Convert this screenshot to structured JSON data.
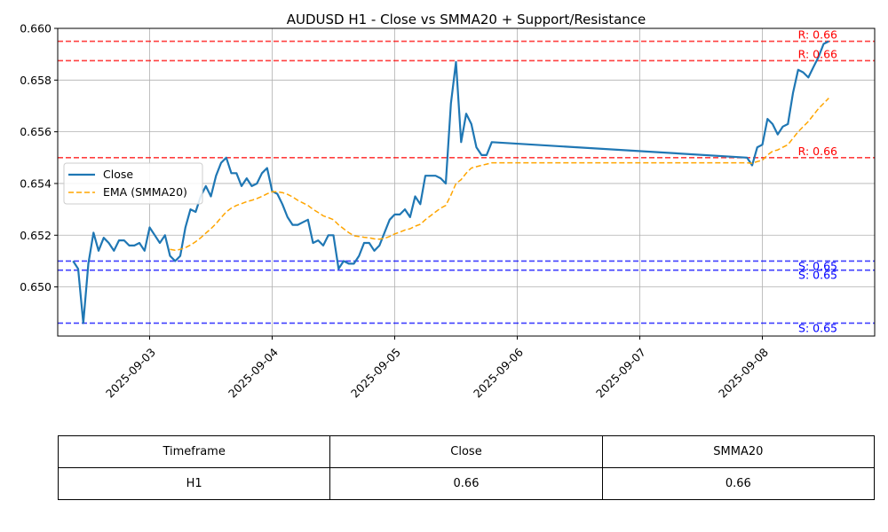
{
  "chart_data": {
    "type": "line",
    "title": "AUDUSD H1 - Close vs SMMA20 + Support/Resistance",
    "xlabel": "",
    "ylabel": "",
    "x_ticks": [
      "2025-09-03",
      "2025-09-04",
      "2025-09-05",
      "2025-09-06",
      "2025-09-07",
      "2025-09-08"
    ],
    "y_ticks": [
      "0.650",
      "0.652",
      "0.654",
      "0.656",
      "0.658",
      "0.660"
    ],
    "xlim": [
      "2025-09-02 06:00",
      "2025-09-08 22:00"
    ],
    "ylim": [
      0.6481,
      0.66
    ],
    "grid": true,
    "legend_position": "center-left",
    "series": [
      {
        "name": "Close",
        "color": "#1f77b4",
        "style": "solid",
        "points": [
          [
            "2025-09-02 09:00",
            0.651
          ],
          [
            "2025-09-02 10:00",
            0.6507
          ],
          [
            "2025-09-02 11:00",
            0.6486
          ],
          [
            "2025-09-02 12:00",
            0.6509
          ],
          [
            "2025-09-02 13:00",
            0.6521
          ],
          [
            "2025-09-02 14:00",
            0.6514
          ],
          [
            "2025-09-02 15:00",
            0.6519
          ],
          [
            "2025-09-02 16:00",
            0.6517
          ],
          [
            "2025-09-02 17:00",
            0.6514
          ],
          [
            "2025-09-02 18:00",
            0.6518
          ],
          [
            "2025-09-02 19:00",
            0.6518
          ],
          [
            "2025-09-02 20:00",
            0.6516
          ],
          [
            "2025-09-02 21:00",
            0.6516
          ],
          [
            "2025-09-02 22:00",
            0.6517
          ],
          [
            "2025-09-02 23:00",
            0.6514
          ],
          [
            "2025-09-03 00:00",
            0.6523
          ],
          [
            "2025-09-03 01:00",
            0.652
          ],
          [
            "2025-09-03 02:00",
            0.6517
          ],
          [
            "2025-09-03 03:00",
            0.652
          ],
          [
            "2025-09-03 04:00",
            0.6512
          ],
          [
            "2025-09-03 05:00",
            0.651
          ],
          [
            "2025-09-03 06:00",
            0.6512
          ],
          [
            "2025-09-03 07:00",
            0.6523
          ],
          [
            "2025-09-03 08:00",
            0.653
          ],
          [
            "2025-09-03 09:00",
            0.6529
          ],
          [
            "2025-09-03 10:00",
            0.6535
          ],
          [
            "2025-09-03 11:00",
            0.6539
          ],
          [
            "2025-09-03 12:00",
            0.6535
          ],
          [
            "2025-09-03 13:00",
            0.6543
          ],
          [
            "2025-09-03 14:00",
            0.6548
          ],
          [
            "2025-09-03 15:00",
            0.655
          ],
          [
            "2025-09-03 16:00",
            0.6544
          ],
          [
            "2025-09-03 17:00",
            0.6544
          ],
          [
            "2025-09-03 18:00",
            0.6539
          ],
          [
            "2025-09-03 19:00",
            0.6542
          ],
          [
            "2025-09-03 20:00",
            0.6539
          ],
          [
            "2025-09-03 21:00",
            0.654
          ],
          [
            "2025-09-03 22:00",
            0.6544
          ],
          [
            "2025-09-03 23:00",
            0.6546
          ],
          [
            "2025-09-04 00:00",
            0.6537
          ],
          [
            "2025-09-04 01:00",
            0.6536
          ],
          [
            "2025-09-04 02:00",
            0.6532
          ],
          [
            "2025-09-04 03:00",
            0.6527
          ],
          [
            "2025-09-04 04:00",
            0.6524
          ],
          [
            "2025-09-04 05:00",
            0.6524
          ],
          [
            "2025-09-04 06:00",
            0.6525
          ],
          [
            "2025-09-04 07:00",
            0.6526
          ],
          [
            "2025-09-04 08:00",
            0.6517
          ],
          [
            "2025-09-04 09:00",
            0.6518
          ],
          [
            "2025-09-04 10:00",
            0.6516
          ],
          [
            "2025-09-04 11:00",
            0.652
          ],
          [
            "2025-09-04 12:00",
            0.652
          ],
          [
            "2025-09-04 13:00",
            0.6507
          ],
          [
            "2025-09-04 14:00",
            0.651
          ],
          [
            "2025-09-04 15:00",
            0.6509
          ],
          [
            "2025-09-04 16:00",
            0.6509
          ],
          [
            "2025-09-04 17:00",
            0.6512
          ],
          [
            "2025-09-04 18:00",
            0.6517
          ],
          [
            "2025-09-04 19:00",
            0.6517
          ],
          [
            "2025-09-04 20:00",
            0.6514
          ],
          [
            "2025-09-04 21:00",
            0.6516
          ],
          [
            "2025-09-04 22:00",
            0.6521
          ],
          [
            "2025-09-04 23:00",
            0.6526
          ],
          [
            "2025-09-05 00:00",
            0.6528
          ],
          [
            "2025-09-05 01:00",
            0.6528
          ],
          [
            "2025-09-05 02:00",
            0.653
          ],
          [
            "2025-09-05 03:00",
            0.6527
          ],
          [
            "2025-09-05 04:00",
            0.6535
          ],
          [
            "2025-09-05 05:00",
            0.6532
          ],
          [
            "2025-09-05 06:00",
            0.6543
          ],
          [
            "2025-09-05 07:00",
            0.6543
          ],
          [
            "2025-09-05 08:00",
            0.6543
          ],
          [
            "2025-09-05 09:00",
            0.6542
          ],
          [
            "2025-09-05 10:00",
            0.654
          ],
          [
            "2025-09-05 11:00",
            0.6571
          ],
          [
            "2025-09-05 12:00",
            0.6587
          ],
          [
            "2025-09-05 13:00",
            0.6556
          ],
          [
            "2025-09-05 14:00",
            0.6567
          ],
          [
            "2025-09-05 15:00",
            0.6563
          ],
          [
            "2025-09-05 16:00",
            0.6554
          ],
          [
            "2025-09-05 17:00",
            0.6551
          ],
          [
            "2025-09-05 18:00",
            0.6551
          ],
          [
            "2025-09-05 19:00",
            0.6556
          ],
          [
            "2025-09-07 21:00",
            0.655
          ],
          [
            "2025-09-07 22:00",
            0.6547
          ],
          [
            "2025-09-07 23:00",
            0.6554
          ],
          [
            "2025-09-08 00:00",
            0.6555
          ],
          [
            "2025-09-08 01:00",
            0.6565
          ],
          [
            "2025-09-08 02:00",
            0.6563
          ],
          [
            "2025-09-08 03:00",
            0.6559
          ],
          [
            "2025-09-08 04:00",
            0.6562
          ],
          [
            "2025-09-08 05:00",
            0.6563
          ],
          [
            "2025-09-08 06:00",
            0.6575
          ],
          [
            "2025-09-08 07:00",
            0.6584
          ],
          [
            "2025-09-08 08:00",
            0.6583
          ],
          [
            "2025-09-08 09:00",
            0.6581
          ],
          [
            "2025-09-08 10:00",
            0.6585
          ],
          [
            "2025-09-08 11:00",
            0.6589
          ],
          [
            "2025-09-08 12:00",
            0.6594
          ],
          [
            "2025-09-08 13:00",
            0.6595
          ]
        ]
      },
      {
        "name": "EMA (SMMA20)",
        "color": "#ffa500",
        "style": "dashed",
        "points": [
          [
            "2025-09-03 04:00",
            0.65145
          ],
          [
            "2025-09-03 05:00",
            0.65142
          ],
          [
            "2025-09-03 06:00",
            0.65145
          ],
          [
            "2025-09-03 07:00",
            0.65152
          ],
          [
            "2025-09-03 08:00",
            0.65162
          ],
          [
            "2025-09-03 09:00",
            0.65175
          ],
          [
            "2025-09-03 10:00",
            0.6519
          ],
          [
            "2025-09-03 11:00",
            0.65208
          ],
          [
            "2025-09-03 12:00",
            0.65225
          ],
          [
            "2025-09-03 13:00",
            0.65245
          ],
          [
            "2025-09-03 14:00",
            0.65268
          ],
          [
            "2025-09-03 15:00",
            0.6529
          ],
          [
            "2025-09-03 16:00",
            0.65305
          ],
          [
            "2025-09-03 17:00",
            0.65315
          ],
          [
            "2025-09-03 18:00",
            0.65322
          ],
          [
            "2025-09-03 19:00",
            0.6533
          ],
          [
            "2025-09-03 20:00",
            0.65335
          ],
          [
            "2025-09-03 21:00",
            0.65342
          ],
          [
            "2025-09-03 22:00",
            0.6535
          ],
          [
            "2025-09-03 23:00",
            0.6536
          ],
          [
            "2025-09-04 00:00",
            0.65368
          ],
          [
            "2025-09-04 01:00",
            0.65368
          ],
          [
            "2025-09-04 02:00",
            0.65365
          ],
          [
            "2025-09-04 03:00",
            0.65358
          ],
          [
            "2025-09-04 04:00",
            0.65348
          ],
          [
            "2025-09-04 05:00",
            0.65335
          ],
          [
            "2025-09-04 06:00",
            0.65325
          ],
          [
            "2025-09-04 07:00",
            0.65315
          ],
          [
            "2025-09-04 08:00",
            0.653
          ],
          [
            "2025-09-04 09:00",
            0.65288
          ],
          [
            "2025-09-04 10:00",
            0.65275
          ],
          [
            "2025-09-04 11:00",
            0.65268
          ],
          [
            "2025-09-04 12:00",
            0.6526
          ],
          [
            "2025-09-04 13:00",
            0.6524
          ],
          [
            "2025-09-04 14:00",
            0.65225
          ],
          [
            "2025-09-04 15:00",
            0.6521
          ],
          [
            "2025-09-04 16:00",
            0.65198
          ],
          [
            "2025-09-04 17:00",
            0.65195
          ],
          [
            "2025-09-04 18:00",
            0.65192
          ],
          [
            "2025-09-04 19:00",
            0.6519
          ],
          [
            "2025-09-04 20:00",
            0.65186
          ],
          [
            "2025-09-04 21:00",
            0.65185
          ],
          [
            "2025-09-04 22:00",
            0.65188
          ],
          [
            "2025-09-04 23:00",
            0.65195
          ],
          [
            "2025-09-05 00:00",
            0.65205
          ],
          [
            "2025-09-05 01:00",
            0.65212
          ],
          [
            "2025-09-05 02:00",
            0.6522
          ],
          [
            "2025-09-05 03:00",
            0.65225
          ],
          [
            "2025-09-05 04:00",
            0.65235
          ],
          [
            "2025-09-05 05:00",
            0.65242
          ],
          [
            "2025-09-05 06:00",
            0.6526
          ],
          [
            "2025-09-05 07:00",
            0.65275
          ],
          [
            "2025-09-05 08:00",
            0.6529
          ],
          [
            "2025-09-05 09:00",
            0.65305
          ],
          [
            "2025-09-05 10:00",
            0.65315
          ],
          [
            "2025-09-05 11:00",
            0.65355
          ],
          [
            "2025-09-05 12:00",
            0.654
          ],
          [
            "2025-09-05 13:00",
            0.65415
          ],
          [
            "2025-09-05 14:00",
            0.6544
          ],
          [
            "2025-09-05 15:00",
            0.6546
          ],
          [
            "2025-09-05 16:00",
            0.65465
          ],
          [
            "2025-09-05 17:00",
            0.6547
          ],
          [
            "2025-09-05 18:00",
            0.65475
          ],
          [
            "2025-09-05 19:00",
            0.6548
          ],
          [
            "2025-09-07 21:00",
            0.6548
          ],
          [
            "2025-09-07 22:00",
            0.65478
          ],
          [
            "2025-09-07 23:00",
            0.65485
          ],
          [
            "2025-09-08 00:00",
            0.6549
          ],
          [
            "2025-09-08 01:00",
            0.6551
          ],
          [
            "2025-09-08 02:00",
            0.65525
          ],
          [
            "2025-09-08 03:00",
            0.6553
          ],
          [
            "2025-09-08 04:00",
            0.6554
          ],
          [
            "2025-09-08 05:00",
            0.6555
          ],
          [
            "2025-09-08 06:00",
            0.65575
          ],
          [
            "2025-09-08 07:00",
            0.656
          ],
          [
            "2025-09-08 08:00",
            0.6562
          ],
          [
            "2025-09-08 09:00",
            0.6564
          ],
          [
            "2025-09-08 10:00",
            0.65665
          ],
          [
            "2025-09-08 11:00",
            0.6569
          ],
          [
            "2025-09-08 12:00",
            0.6571
          ],
          [
            "2025-09-08 13:00",
            0.6573
          ]
        ]
      }
    ],
    "levels": [
      {
        "kind": "resistance",
        "value": 0.6595,
        "label": "R: 0.66",
        "color": "#ff0000"
      },
      {
        "kind": "resistance",
        "value": 0.65875,
        "label": "R: 0.66",
        "color": "#ff0000"
      },
      {
        "kind": "resistance",
        "value": 0.655,
        "label": "R: 0.66",
        "color": "#ff0000"
      },
      {
        "kind": "support",
        "value": 0.651,
        "label": "S: 0.65",
        "color": "#0000ff"
      },
      {
        "kind": "support",
        "value": 0.65065,
        "label": "S: 0.65",
        "color": "#0000ff"
      },
      {
        "kind": "support",
        "value": 0.6486,
        "label": "S: 0.65",
        "color": "#0000ff"
      }
    ]
  },
  "table": {
    "headers": [
      "Timeframe",
      "Close",
      "SMMA20"
    ],
    "rows": [
      [
        "H1",
        "0.66",
        "0.66"
      ]
    ]
  }
}
